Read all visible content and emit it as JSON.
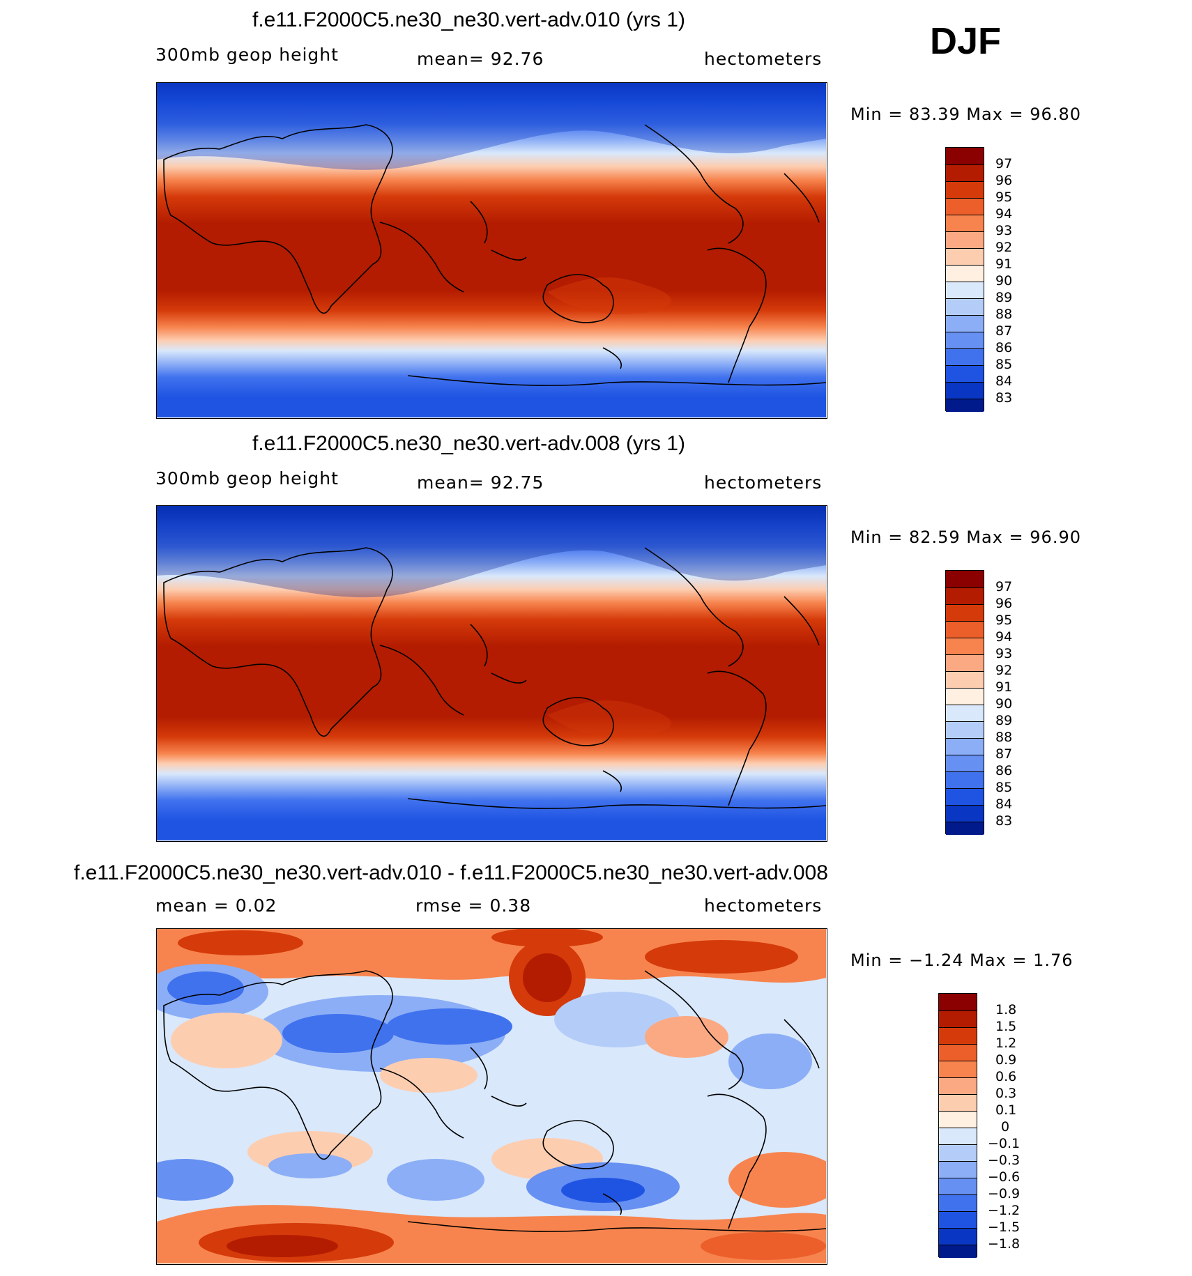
{
  "season": "DJF",
  "panels": [
    {
      "title": "f.e11.F2000C5.ne30_ne30.vert-adv.010 (yrs 1)",
      "left": "300mb  geop  height",
      "center": "mean=   92.76",
      "right": "hectometers",
      "stats": "Min =    83.39  Max =    96.80",
      "labels": [
        "97",
        "96",
        "95",
        "94",
        "93",
        "92",
        "91",
        "90",
        "89",
        "88",
        "87",
        "86",
        "85",
        "84",
        "83"
      ],
      "colors": [
        "#8b0000",
        "#b31c00",
        "#d53a0a",
        "#ec5f2b",
        "#f7844e",
        "#fba983",
        "#fdcdb0",
        "#fff0e2",
        "#d9e8fb",
        "#b4cdf8",
        "#8caef6",
        "#6690f2",
        "#4072ee",
        "#1f54e3",
        "#0937c4",
        "#001a8c"
      ]
    },
    {
      "title": "f.e11.F2000C5.ne30_ne30.vert-adv.008 (yrs 1)",
      "left": "300mb  geop  height",
      "center": "mean=   92.75",
      "right": "hectometers",
      "stats": "Min =    82.59  Max =    96.90",
      "labels": [
        "97",
        "96",
        "95",
        "94",
        "93",
        "92",
        "91",
        "90",
        "89",
        "88",
        "87",
        "86",
        "85",
        "84",
        "83"
      ],
      "colors": [
        "#8b0000",
        "#b31c00",
        "#d53a0a",
        "#ec5f2b",
        "#f7844e",
        "#fba983",
        "#fdcdb0",
        "#fff0e2",
        "#d9e8fb",
        "#b4cdf8",
        "#8caef6",
        "#6690f2",
        "#4072ee",
        "#1f54e3",
        "#0937c4",
        "#001a8c"
      ]
    },
    {
      "title": "f.e11.F2000C5.ne30_ne30.vert-adv.010 - f.e11.F2000C5.ne30_ne30.vert-adv.008",
      "left": "mean =     0.02",
      "center": "rmse =     0.38",
      "right": "hectometers",
      "stats": "Min =   −1.24  Max =     1.76",
      "labels": [
        "1.8",
        "1.5",
        "1.2",
        "0.9",
        "0.6",
        "0.3",
        "0.1",
        "0",
        "−0.1",
        "−0.3",
        "−0.6",
        "−0.9",
        "−1.2",
        "−1.5",
        "−1.8"
      ],
      "colors": [
        "#8b0000",
        "#b31c00",
        "#d53a0a",
        "#ec5f2b",
        "#f7844e",
        "#fba983",
        "#fdcdb0",
        "#fff0e2",
        "#d9e8fb",
        "#b4cdf8",
        "#8caef6",
        "#6690f2",
        "#4072ee",
        "#1f54e3",
        "#0937c4",
        "#001a8c"
      ]
    }
  ]
}
